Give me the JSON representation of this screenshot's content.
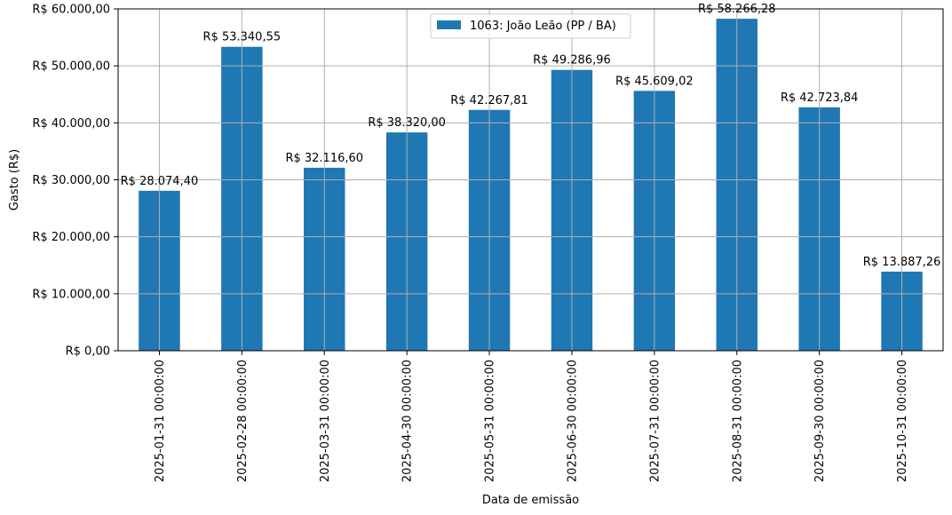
{
  "chart_data": {
    "type": "bar",
    "categories": [
      "2025-01-31 00:00:00",
      "2025-02-28 00:00:00",
      "2025-03-31 00:00:00",
      "2025-04-30 00:00:00",
      "2025-05-31 00:00:00",
      "2025-06-30 00:00:00",
      "2025-07-31 00:00:00",
      "2025-08-31 00:00:00",
      "2025-09-30 00:00:00",
      "2025-10-31 00:00:00"
    ],
    "series": [
      {
        "name": "1063: João Leão (PP / BA)",
        "color": "#1f77b4",
        "values": [
          28074.4,
          53340.55,
          32116.6,
          38320.0,
          42267.81,
          49286.96,
          45609.02,
          58266.28,
          42723.84,
          13887.26
        ],
        "labels": [
          "R$ 28.074,40",
          "R$ 53.340,55",
          "R$ 32.116,60",
          "R$ 38.320,00",
          "R$ 42.267,81",
          "R$ 49.286,96",
          "R$ 45.609,02",
          "R$ 58.266,28",
          "R$ 42.723,84",
          "R$ 13.887,26"
        ]
      }
    ],
    "title": "",
    "xlabel": "Data de emissão",
    "ylabel": "Gasto (R$)",
    "ylim": [
      0,
      60000
    ],
    "yticks": [
      0,
      10000,
      20000,
      30000,
      40000,
      50000,
      60000
    ],
    "ytick_labels": [
      "R$ 0,00",
      "R$ 10.000,00",
      "R$ 20.000,00",
      "R$ 30.000,00",
      "R$ 40.000,00",
      "R$ 50.000,00",
      "R$ 60.000,00"
    ],
    "grid": true,
    "legend_position": "top-center",
    "grid_color": "#b0b0b0"
  }
}
